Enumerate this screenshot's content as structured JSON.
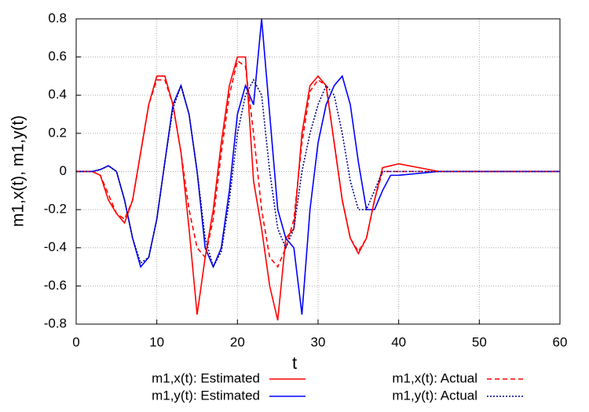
{
  "chart_data": {
    "type": "line",
    "xlabel": "t",
    "ylabel": "m1,x(t), m1,y(t)",
    "x": [
      0,
      1,
      2,
      3,
      4,
      5,
      6,
      7,
      8,
      9,
      10,
      11,
      12,
      13,
      14,
      15,
      16,
      17,
      18,
      19,
      20,
      21,
      22,
      23,
      24,
      25,
      26,
      27,
      28,
      29,
      30,
      31,
      32,
      33,
      34,
      35,
      36,
      37,
      38,
      39,
      40,
      45,
      50,
      55,
      60
    ],
    "series": [
      {
        "name": "m1,x(t): Estimated",
        "color": "#ff0000",
        "linestyle": "solid",
        "values": [
          0,
          0,
          0,
          -0.02,
          -0.15,
          -0.22,
          -0.27,
          -0.15,
          0.1,
          0.35,
          0.5,
          0.5,
          0.35,
          0.1,
          -0.3,
          -0.75,
          -0.45,
          -0.2,
          0.15,
          0.45,
          0.6,
          0.6,
          -0.05,
          -0.3,
          -0.6,
          -0.78,
          -0.35,
          -0.3,
          0.2,
          0.45,
          0.5,
          0.45,
          0.15,
          -0.15,
          -0.35,
          -0.43,
          -0.35,
          -0.15,
          0.02,
          0.03,
          0.04,
          0,
          0,
          0,
          0
        ]
      },
      {
        "name": "m1,y(t): Estimated",
        "color": "#0000ff",
        "linestyle": "solid",
        "values": [
          0,
          0,
          0,
          0.01,
          0.03,
          0,
          -0.15,
          -0.35,
          -0.5,
          -0.45,
          -0.25,
          0.05,
          0.35,
          0.45,
          0.3,
          0,
          -0.4,
          -0.5,
          -0.4,
          -0.1,
          0.3,
          0.45,
          0.35,
          0.8,
          0.3,
          -0.2,
          -0.35,
          -0.4,
          -0.75,
          -0.2,
          0.15,
          0.35,
          0.45,
          0.5,
          0.35,
          0.05,
          -0.2,
          -0.2,
          -0.1,
          -0.02,
          -0.02,
          0,
          0,
          0,
          0
        ]
      },
      {
        "name": "m1,x(t): Actual",
        "color": "#ff0000",
        "linestyle": "dashed",
        "values": [
          0,
          0,
          0,
          -0.02,
          -0.12,
          -0.22,
          -0.25,
          -0.15,
          0.1,
          0.35,
          0.48,
          0.48,
          0.35,
          0.1,
          -0.2,
          -0.4,
          -0.45,
          -0.25,
          0.1,
          0.4,
          0.58,
          0.55,
          0.2,
          -0.2,
          -0.45,
          -0.5,
          -0.4,
          -0.25,
          0.15,
          0.42,
          0.48,
          0.45,
          0.15,
          -0.15,
          -0.35,
          -0.42,
          -0.35,
          -0.15,
          0,
          0,
          0,
          0,
          0,
          0,
          0
        ]
      },
      {
        "name": "m1,y(t): Actual",
        "color": "#00008b",
        "linestyle": "dotted",
        "values": [
          0,
          0,
          0,
          0.01,
          0.03,
          0,
          -0.15,
          -0.35,
          -0.48,
          -0.45,
          -0.25,
          0.05,
          0.33,
          0.45,
          0.3,
          0,
          -0.35,
          -0.5,
          -0.42,
          -0.15,
          0.2,
          0.4,
          0.48,
          0.4,
          0,
          -0.3,
          -0.4,
          -0.3,
          0,
          0.2,
          0.35,
          0.45,
          0.4,
          0.2,
          -0.05,
          -0.2,
          -0.2,
          -0.1,
          0,
          0,
          0,
          0,
          0,
          0,
          0
        ]
      }
    ],
    "xlim": [
      0,
      60
    ],
    "xticks": [
      0,
      10,
      20,
      30,
      40,
      50,
      60
    ],
    "ylim": [
      -0.8,
      0.8
    ],
    "yticks": [
      -0.8,
      -0.6,
      -0.4,
      -0.2,
      0,
      0.2,
      0.4,
      0.6,
      0.8
    ],
    "grid": true,
    "legend": "bottom"
  }
}
